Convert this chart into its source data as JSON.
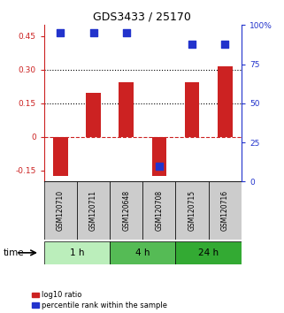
{
  "title": "GDS3433 / 25170",
  "samples": [
    "GSM120710",
    "GSM120711",
    "GSM120648",
    "GSM120708",
    "GSM120715",
    "GSM120716"
  ],
  "log10_ratio": [
    -0.175,
    0.195,
    0.245,
    -0.175,
    0.245,
    0.315
  ],
  "percentile_rank": [
    95,
    95,
    95,
    10,
    88,
    88
  ],
  "groups": [
    {
      "label": "1 h",
      "start": 0,
      "end": 2
    },
    {
      "label": "4 h",
      "start": 2,
      "end": 4
    },
    {
      "label": "24 h",
      "start": 4,
      "end": 6
    }
  ],
  "group_colors": [
    "#bbeebb",
    "#55bb55",
    "#33aa33"
  ],
  "left_ylim": [
    -0.2,
    0.5
  ],
  "left_yticks": [
    -0.15,
    0.0,
    0.15,
    0.3,
    0.45
  ],
  "left_yticklabels": [
    "-0.15",
    "0",
    "0.15",
    "0.30",
    "0.45"
  ],
  "right_ylim": [
    0,
    100
  ],
  "right_yticks": [
    0,
    25,
    50,
    75,
    100
  ],
  "right_yticklabels": [
    "0",
    "25",
    "50",
    "75",
    "100%"
  ],
  "dotted_lines": [
    0.15,
    0.3
  ],
  "zero_dashed_color": "#cc2222",
  "bar_color": "#cc2222",
  "dot_color": "#2233cc",
  "bar_width": 0.45,
  "dot_size": 40,
  "left_axis_color": "#cc2222",
  "right_axis_color": "#2233cc",
  "legend_red_label": "log10 ratio",
  "legend_blue_label": "percentile rank within the sample",
  "time_label": "time",
  "sample_box_color": "#cccccc"
}
